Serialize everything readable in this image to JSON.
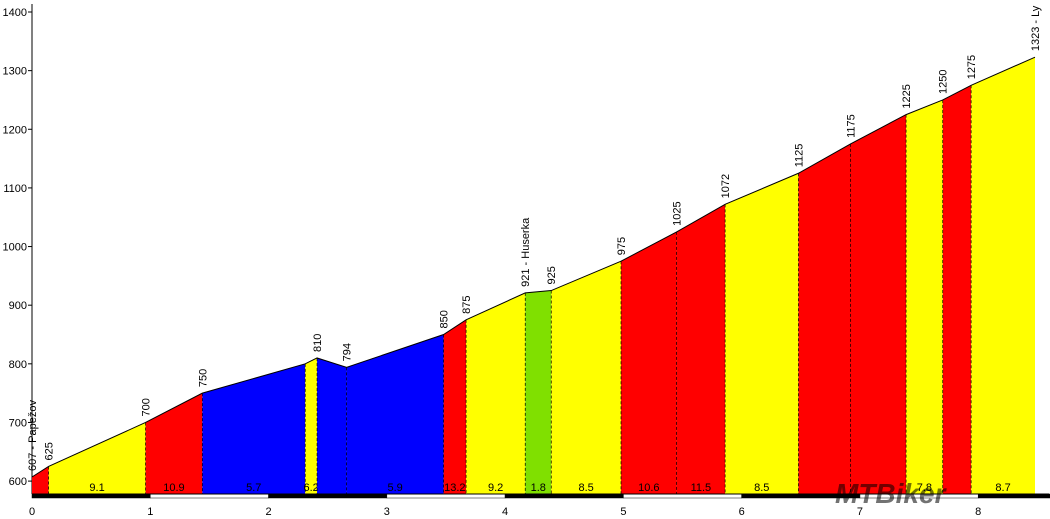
{
  "chart_data": {
    "type": "elevation-profile",
    "x": [
      0,
      0.14,
      0.96,
      1.44,
      2.31,
      2.41,
      2.66,
      3.48,
      3.67,
      4.17,
      4.39,
      4.98,
      5.45,
      5.86,
      6.48,
      6.92,
      7.39,
      7.7,
      7.94,
      8.48
    ],
    "values": [
      607,
      625,
      700,
      750,
      800,
      810,
      794,
      850,
      875,
      921,
      925,
      975,
      1025,
      1072,
      1125,
      1175,
      1225,
      1250,
      1275,
      1323
    ],
    "value_labels": [
      "607 - Papežov",
      "625",
      "700",
      "750",
      null,
      "810",
      "794",
      "850",
      "875",
      "921 - Huserka",
      "925",
      "975",
      "1025",
      "1072",
      "1125",
      "1175",
      "1225",
      "1250",
      "1275",
      "1323 - Ly"
    ],
    "grades": [
      null,
      9.1,
      10.9,
      5.7,
      6.2,
      null,
      5.9,
      13.2,
      9.2,
      1.8,
      8.5,
      10.6,
      11.5,
      8.5,
      null,
      null,
      7.8,
      null,
      8.7
    ],
    "segment_colors": [
      "#ff0000",
      "#ffff00",
      "#ff0000",
      "#0000ff",
      "#ffff00",
      "#0000ff",
      "#0000ff",
      "#ff0000",
      "#ffff00",
      "#80e000",
      "#ffff00",
      "#ff0000",
      "#ff0000",
      "#ffff00",
      "#ff0000",
      "#ff0000",
      "#ffff00",
      "#ff0000",
      "#ffff00"
    ],
    "xlim": [
      0,
      8.48
    ],
    "ylim": [
      578,
      1400
    ],
    "xticks": [
      0,
      1,
      2,
      3,
      4,
      5,
      6,
      7,
      8
    ],
    "yticks": [
      600,
      700,
      800,
      900,
      1000,
      1100,
      1200,
      1300,
      1400
    ],
    "logo": "MTBiker"
  }
}
